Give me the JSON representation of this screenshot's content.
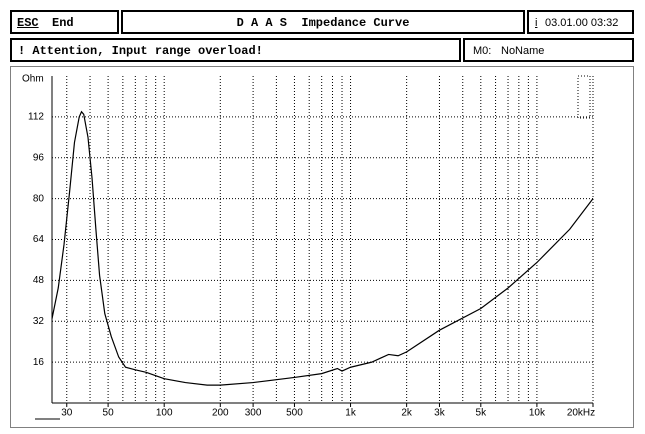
{
  "header": {
    "esc": "ESC",
    "end": "End",
    "title": "D A A S  Impedance Curve",
    "info_key": "i",
    "datetime": "03.01.00 03:32"
  },
  "status": {
    "message": "! Attention, Input range overload!",
    "memory_label": "M0:",
    "memory_name": "NoName"
  },
  "chart_data": {
    "type": "line",
    "y_label": "Ohm",
    "log_x": true,
    "grid": true,
    "color": "#000000",
    "xlim": [
      25,
      20000
    ],
    "ylim": [
      0,
      128
    ],
    "xticks": [
      30,
      50,
      100,
      200,
      300,
      500,
      {
        "value": 1000,
        "label": "1k"
      },
      {
        "value": 2000,
        "label": "2k"
      },
      {
        "value": 3000,
        "label": "3k"
      },
      {
        "value": 5000,
        "label": "5k"
      },
      {
        "value": 10000,
        "label": "10k"
      },
      {
        "value": 20000,
        "label": "20kHz"
      }
    ],
    "xminor": [
      40,
      60,
      70,
      80,
      90,
      400,
      600,
      700,
      800,
      900,
      4000,
      6000,
      7000,
      8000,
      9000
    ],
    "yticks": [
      16,
      32,
      48,
      64,
      80,
      96,
      112
    ],
    "x": [
      25,
      27,
      29,
      31,
      33,
      35,
      36,
      37,
      39,
      41,
      43,
      45,
      48,
      52,
      57,
      62,
      70,
      80,
      100,
      130,
      170,
      200,
      300,
      500,
      700,
      850,
      900,
      1000,
      1300,
      1600,
      1800,
      2000,
      3000,
      5000,
      7000,
      10000,
      15000,
      20000
    ],
    "values": [
      33,
      45,
      62,
      82,
      102,
      112,
      114,
      113,
      104,
      88,
      68,
      50,
      35,
      26,
      18,
      14,
      13,
      12,
      9.5,
      8,
      7,
      7,
      8,
      10,
      11.5,
      13.5,
      12.5,
      14,
      16,
      19,
      18.5,
      20,
      28.5,
      37,
      45,
      55,
      68,
      80
    ]
  }
}
